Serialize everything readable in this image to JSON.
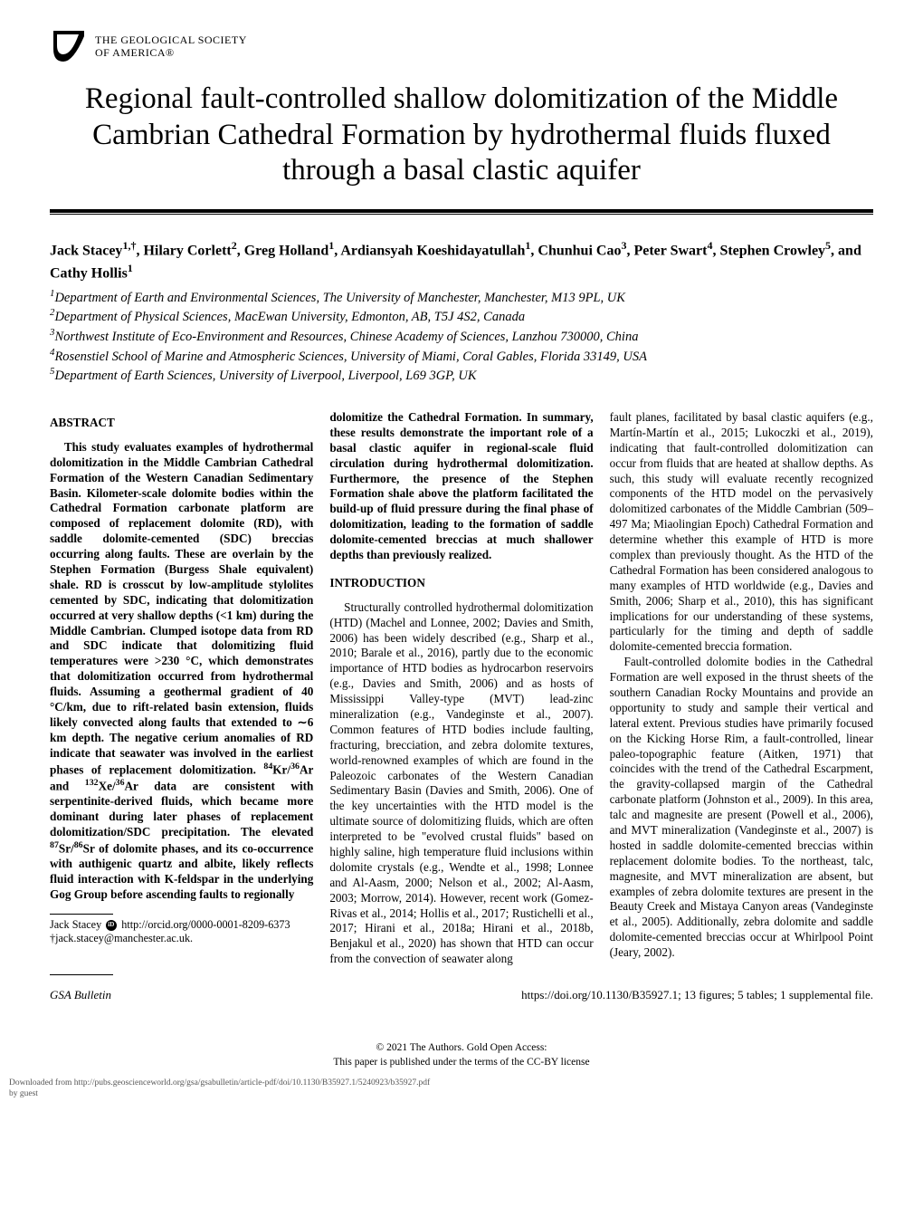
{
  "logo": {
    "org_line1": "THE GEOLOGICAL SOCIETY",
    "org_line2": "OF AMERICA®"
  },
  "title": "Regional fault-controlled shallow dolomitization of the Middle Cambrian Cathedral Formation by hydrothermal fluids fluxed through a basal clastic aquifer",
  "authors_html": "Jack Stacey<sup>1,†</sup>, Hilary Corlett<sup>2</sup>, Greg Holland<sup>1</sup>, Ardiansyah Koeshidayatullah<sup>1</sup>, Chunhui Cao<sup>3</sup>, Peter Swart<sup>4</sup>, Stephen Crowley<sup>5</sup>, and Cathy Hollis<sup>1</sup>",
  "affiliations": [
    "1Department of Earth and Environmental Sciences, The University of Manchester, Manchester, M13 9PL, UK",
    "2Department of Physical Sciences, MacEwan University, Edmonton, AB, T5J 4S2, Canada",
    "3Northwest Institute of Eco-Environment and Resources, Chinese Academy of Sciences, Lanzhou 730000, China",
    "4Rosenstiel School of Marine and Atmospheric Sciences, University of Miami, Coral Gables, Florida 33149, USA",
    "5Department of Earth Sciences, University of Liverpool, Liverpool, L69 3GP, UK"
  ],
  "sections": {
    "abstract_heading": "ABSTRACT",
    "introduction_heading": "INTRODUCTION"
  },
  "abstract_text": "This study evaluates examples of hydrothermal dolomitization in the Middle Cambrian Cathedral Formation of the Western Canadian Sedimentary Basin. Kilometer-scale dolomite bodies within the Cathedral Formation carbonate platform are composed of replacement dolomite (RD), with saddle dolomite-cemented (SDC) breccias occurring along faults. These are overlain by the Stephen Formation (Burgess Shale equivalent) shale. RD is crosscut by low-amplitude stylolites cemented by SDC, indicating that dolomitization occurred at very shallow depths (<1 km) during the Middle Cambrian. Clumped isotope data from RD and SDC indicate that dolomitizing fluid temperatures were >230 °C, which demonstrates that dolomitization occurred from hydrothermal fluids. Assuming a geothermal gradient of 40 °C/km, due to rift-related basin extension, fluids likely convected along faults that extended to ∼6 km depth. The negative cerium anomalies of RD indicate that seawater was involved in the earliest phases of replacement dolomitization. 84Kr/36Ar and 132Xe/36Ar data are consistent with serpentinite-derived fluids, which became more dominant during later phases of replacement dolomitization/SDC precipitation. The elevated 87Sr/86Sr of dolomite phases, and its co-occurrence with authigenic quartz and albite, likely reflects fluid interaction with K-feldspar in the underlying Gog Group before ascending faults to regionally",
  "col2_continuation": "dolomitize the Cathedral Formation. In summary, these results demonstrate the important role of a basal clastic aquifer in regional-scale fluid circulation during hydrothermal dolomitization. Furthermore, the presence of the Stephen Formation shale above the platform facilitated the build-up of fluid pressure during the final phase of dolomitization, leading to the formation of saddle dolomite-cemented breccias at much shallower depths than previously realized.",
  "introduction_text": "Structurally controlled hydrothermal dolomitization (HTD) (Machel and Lonnee, 2002; Davies and Smith, 2006) has been widely described (e.g., Sharp et al., 2010; Barale et al., 2016), partly due to the economic importance of HTD bodies as hydrocarbon reservoirs (e.g., Davies and Smith, 2006) and as hosts of Mississippi Valley-type (MVT) lead-zinc mineralization (e.g., Vandeginste et al., 2007). Common features of HTD bodies include faulting, fracturing, brecciation, and zebra dolomite textures, world-renowned examples of which are found in the Paleozoic carbonates of the Western Canadian Sedimentary Basin (Davies and Smith, 2006). One of the key uncertainties with the HTD model is the ultimate source of dolomitizing fluids, which are often interpreted to be \"evolved crustal fluids\" based on highly saline, high temperature fluid inclusions within dolomite crystals (e.g., Wendte et al., 1998; Lonnee and Al-Aasm, 2000; Nelson et al., 2002; Al-Aasm, 2003; Morrow, 2014). However, recent work (Gomez-Rivas et al., 2014; Hollis et al., 2017; Rustichelli et al., 2017; Hirani et al., 2018a; Hirani et al., 2018b, Benjakul et al., 2020) has shown that HTD can occur from the convection of seawater along",
  "col3_text": "fault planes, facilitated by basal clastic aquifers (e.g., Martín-Martín et al., 2015; Lukoczki et al., 2019), indicating that fault-controlled dolomitization can occur from fluids that are heated at shallow depths. As such, this study will evaluate recently recognized components of the HTD model on the pervasively dolomitized carbonates of the Middle Cambrian (509–497 Ma; Miaolingian Epoch) Cathedral Formation and determine whether this example of HTD is more complex than previously thought. As the HTD of the Cathedral Formation has been considered analogous to many examples of HTD worldwide (e.g., Davies and Smith, 2006; Sharp et al., 2010), this has significant implications for our understanding of these systems, particularly for the timing and depth of saddle dolomite-cemented breccia formation.",
  "col3_text2": "Fault-controlled dolomite bodies in the Cathedral Formation are well exposed in the thrust sheets of the southern Canadian Rocky Mountains and provide an opportunity to study and sample their vertical and lateral extent. Previous studies have primarily focused on the Kicking Horse Rim, a fault-controlled, linear paleo-topographic feature (Aitken, 1971) that coincides with the trend of the Cathedral Escarpment, the gravity-collapsed margin of the Cathedral carbonate platform (Johnston et al., 2009). In this area, talc and magnesite are present (Powell et al., 2006), and MVT mineralization (Vandeginste et al., 2007) is hosted in saddle dolomite-cemented breccias within replacement dolomite bodies. To the northeast, talc, magnesite, and MVT mineralization are absent, but examples of zebra dolomite textures are present in the Beauty Creek and Mistaya Canyon areas (Vandeginste et al., 2005). Additionally, zebra dolomite and saddle dolomite-cemented breccias occur at Whirlpool Point (Jeary, 2002).",
  "footnotes": {
    "orcid_prefix": "Jack Stacey ",
    "orcid_url": "http://orcid.org/0000-0001-8209-6373",
    "email": "†jack.stacey@manchester.ac.uk."
  },
  "footer": {
    "journal": "GSA Bulletin",
    "separator": "; ",
    "doi": "https://doi.org/10.1130/B35927.1; 13 figures; 5 tables; 1 supplemental file."
  },
  "copyright": {
    "line1": "© 2021 The Authors. Gold Open Access:",
    "line2": "This paper is published under the terms of the CC-BY license"
  },
  "downloaded": {
    "line1": "Downloaded from http://pubs.geoscienceworld.org/gsa/gsabulletin/article-pdf/doi/10.1130/B35927.1/5240923/b35927.pdf",
    "line2": "by guest"
  },
  "colors": {
    "text": "#000000",
    "background": "#ffffff",
    "footer_grey": "#555555"
  }
}
